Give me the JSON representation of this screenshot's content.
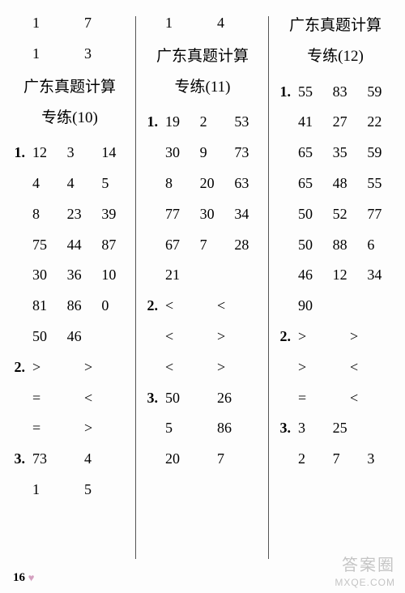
{
  "page_number": "16",
  "watermark_main": "答案圈",
  "watermark_sub": "MXQE.COM",
  "columns": [
    {
      "pre_rows": [
        {
          "label": "",
          "cells": [
            "1",
            "7"
          ],
          "cols": 2
        },
        {
          "label": "",
          "cells": [
            "1",
            "3"
          ],
          "cols": 2
        }
      ],
      "title_line1": "广东真题计算",
      "title_line2": "专练(10)",
      "blocks": [
        {
          "label": "1.",
          "rows": [
            [
              "12",
              "3",
              "14"
            ],
            [
              "4",
              "4",
              "5"
            ],
            [
              "8",
              "23",
              "39"
            ],
            [
              "75",
              "44",
              "87"
            ],
            [
              "30",
              "36",
              "10"
            ],
            [
              "81",
              "86",
              "0"
            ],
            [
              "50",
              "46",
              ""
            ]
          ],
          "cols": 3
        },
        {
          "label": "2.",
          "rows": [
            [
              ">",
              ">"
            ],
            [
              "=",
              "<"
            ],
            [
              "=",
              ">"
            ]
          ],
          "cols": 2
        },
        {
          "label": "3.",
          "rows": [
            [
              "73",
              "4"
            ],
            [
              "1",
              "5"
            ]
          ],
          "cols": 2
        }
      ]
    },
    {
      "pre_rows": [
        {
          "label": "",
          "cells": [
            "1",
            "4"
          ],
          "cols": 2
        }
      ],
      "title_line1": "广东真题计算",
      "title_line2": "专练(11)",
      "blocks": [
        {
          "label": "1.",
          "rows": [
            [
              "19",
              "2",
              "53"
            ],
            [
              "30",
              "9",
              "73"
            ],
            [
              "8",
              "20",
              "63"
            ],
            [
              "77",
              "30",
              "34"
            ],
            [
              "67",
              "7",
              "28"
            ],
            [
              "21",
              "",
              ""
            ]
          ],
          "cols": 3
        },
        {
          "label": "2.",
          "rows": [
            [
              "<",
              "<"
            ],
            [
              "<",
              ">"
            ],
            [
              "<",
              ">"
            ]
          ],
          "cols": 2
        },
        {
          "label": "3.",
          "rows": [
            [
              "50",
              "26"
            ],
            [
              "5",
              "86"
            ],
            [
              "20",
              "7"
            ]
          ],
          "cols": 2
        }
      ]
    },
    {
      "pre_rows": [],
      "title_line1": "广东真题计算",
      "title_line2": "专练(12)",
      "blocks": [
        {
          "label": "1.",
          "rows": [
            [
              "55",
              "83",
              "59"
            ],
            [
              "41",
              "27",
              "22"
            ],
            [
              "65",
              "35",
              "59"
            ],
            [
              "65",
              "48",
              "55"
            ],
            [
              "50",
              "52",
              "77"
            ],
            [
              "50",
              "88",
              "6"
            ],
            [
              "46",
              "12",
              "34"
            ],
            [
              "90",
              "",
              ""
            ]
          ],
          "cols": 3
        },
        {
          "label": "2.",
          "rows": [
            [
              ">",
              ">"
            ],
            [
              ">",
              "<"
            ],
            [
              "=",
              "<"
            ]
          ],
          "cols": 2
        },
        {
          "label": "3.",
          "rows": [
            [
              "3",
              "25",
              ""
            ],
            [
              "2",
              "7",
              "3"
            ]
          ],
          "cols": 3
        }
      ]
    }
  ]
}
